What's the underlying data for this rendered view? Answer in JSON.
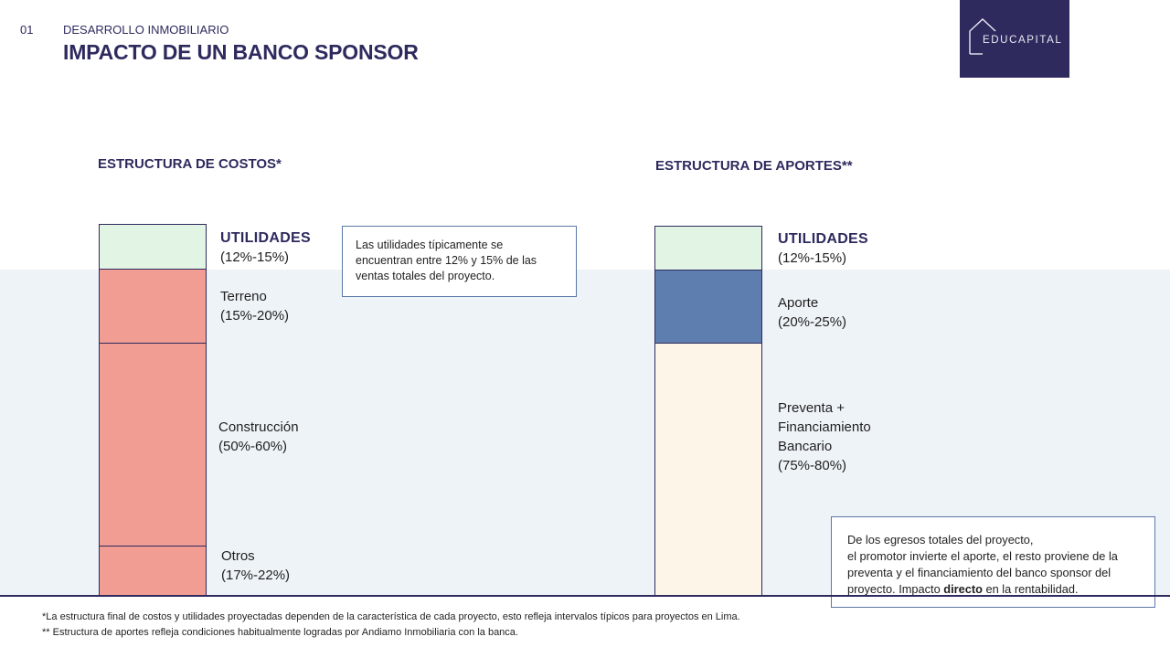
{
  "header": {
    "slide_number": "01",
    "section": "DESARROLLO INMOBILIARIO",
    "title": "IMPACTO DE UN BANCO SPONSOR"
  },
  "logo": {
    "text": "EDUCAPITAL",
    "icon": "house-outline-icon"
  },
  "colors": {
    "navy": "#2e2a5e",
    "utilidades": "#e2f5e4",
    "costos": "#f19d93",
    "aporte": "#5f7eb0",
    "preventa": "#fdf6e8",
    "band": "#eef3f8"
  },
  "costos": {
    "heading": "ESTRUCTURA DE COSTOS*",
    "segments": [
      {
        "name": "UTILIDADES",
        "range": "(12%-15%)"
      },
      {
        "name": "Terreno",
        "range": "(15%-20%)"
      },
      {
        "name": "Construcción",
        "range": "(50%-60%)"
      },
      {
        "name": "Otros",
        "range": "(17%-22%)"
      }
    ],
    "callout": "Las utilidades típicamente se encuentran entre 12% y 15% de las ventas totales del proyecto."
  },
  "aportes": {
    "heading": "ESTRUCTURA DE APORTES**",
    "segments": [
      {
        "name": "UTILIDADES",
        "range": "(12%-15%)"
      },
      {
        "name": "Aporte",
        "range": "(20%-25%)"
      },
      {
        "name_lines": [
          "Preventa +",
          "Financiamiento",
          "Bancario"
        ],
        "range": "(75%-80%)"
      }
    ],
    "callout": {
      "line1": "De los egresos totales del proyecto,",
      "line2_pre": "el promotor invierte el aporte, el resto proviene de la preventa y el financiamiento del banco sponsor del proyecto.  Impacto ",
      "line2_bold": "directo",
      "line2_post": " en la rentabilidad."
    }
  },
  "footnotes": [
    "*La estructura final de costos y utilidades proyectadas dependen de la característica de cada proyecto, esto refleja intervalos típicos para proyectos en Lima.",
    "** Estructura de aportes refleja  condiciones habitualmente logradas por Andiamo Inmobiliaria con la banca."
  ]
}
